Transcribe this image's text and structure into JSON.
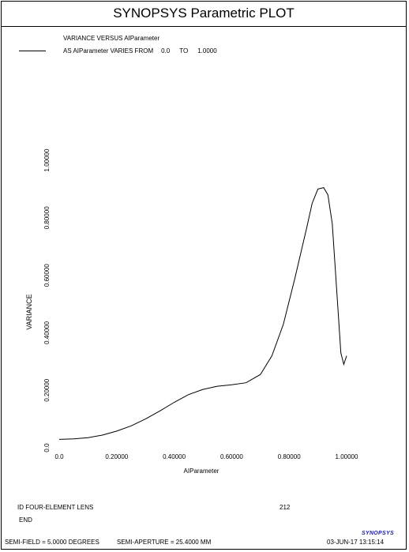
{
  "window": {
    "title": "SYNOPSYS Parametric PLOT"
  },
  "legend": {
    "line1": "VARIANCE VERSUS AIParameter",
    "line2_prefix": "AS AIParameter VARIES FROM",
    "from_value": "0.0",
    "to_word": "TO",
    "to_value": "1.0000"
  },
  "footer": {
    "id_label": "ID FOUR-ELEMENT LENS",
    "id_number": "212",
    "end_label": "END",
    "semi_field": "SEMI-FIELD =   5.0000 DEGREES",
    "semi_aperture": "SEMI-APERTURE =   25.4000 MM",
    "datetime": "03-JUN-17  13:15:14",
    "logo": "SYNOPSYS"
  },
  "chart_data": {
    "type": "line",
    "xlabel": "AIParameter",
    "ylabel": "VARIANCE",
    "xlim": [
      0.0,
      1.0
    ],
    "ylim": [
      0.0,
      1.0
    ],
    "x_ticks": [
      "0.0",
      "0.20000",
      "0.40000",
      "0.60000",
      "0.80000",
      "1.00000"
    ],
    "x_tick_values": [
      0.0,
      0.2,
      0.4,
      0.6,
      0.8,
      1.0
    ],
    "y_ticks": [
      "0.0",
      "0.20000",
      "0.40000",
      "0.60000",
      "0.80000",
      "1.00000"
    ],
    "y_tick_values": [
      0.0,
      0.2,
      0.4,
      0.6,
      0.8,
      1.0
    ],
    "grid": false,
    "series": [
      {
        "color": "#000000",
        "x": [
          0.0,
          0.05,
          0.1,
          0.15,
          0.2,
          0.25,
          0.3,
          0.35,
          0.4,
          0.45,
          0.5,
          0.55,
          0.6,
          0.65,
          0.7,
          0.74,
          0.78,
          0.82,
          0.86,
          0.88,
          0.9,
          0.92,
          0.935,
          0.95,
          0.97,
          0.98,
          0.99,
          1.0
        ],
        "y": [
          0.029,
          0.031,
          0.035,
          0.044,
          0.058,
          0.076,
          0.1,
          0.128,
          0.158,
          0.185,
          0.203,
          0.214,
          0.219,
          0.226,
          0.255,
          0.32,
          0.43,
          0.59,
          0.76,
          0.85,
          0.9,
          0.905,
          0.88,
          0.78,
          0.48,
          0.33,
          0.29,
          0.32
        ]
      }
    ]
  }
}
